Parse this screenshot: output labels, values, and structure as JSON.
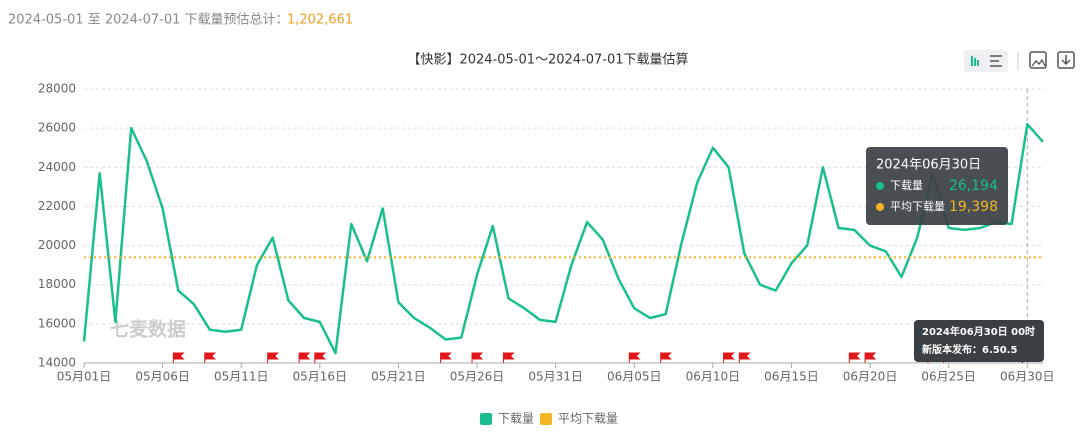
{
  "header": {
    "text": "2024-05-01 至 2024-07-01 下载量预估总计：",
    "total": "1,202,661"
  },
  "chart_data": {
    "type": "line",
    "title": "【快影】2024-05-01～2024-07-01下载量估算",
    "categories": [
      "05月01日",
      null,
      null,
      null,
      null,
      "05月06日",
      null,
      null,
      null,
      null,
      "05月11日",
      null,
      null,
      null,
      null,
      "05月16日",
      null,
      null,
      null,
      null,
      "05月21日",
      null,
      null,
      null,
      null,
      "05月26日",
      null,
      null,
      null,
      null,
      "05月31日",
      null,
      null,
      null,
      null,
      "06月05日",
      null,
      null,
      null,
      null,
      "06月10日",
      null,
      null,
      null,
      null,
      "06月15日",
      null,
      null,
      null,
      null,
      "06月20日",
      null,
      null,
      null,
      null,
      "06月25日",
      null,
      null,
      null,
      null,
      "06月30日",
      null
    ],
    "series": [
      {
        "name": "下载量",
        "color": "#1bbf8f",
        "values": [
          15100,
          23700,
          16100,
          26000,
          24300,
          21900,
          17700,
          17000,
          15700,
          15600,
          15700,
          19000,
          20400,
          17200,
          16300,
          16100,
          14500,
          21100,
          19200,
          21900,
          17100,
          16300,
          15800,
          15200,
          15300,
          18500,
          21000,
          17300,
          16800,
          16200,
          16100,
          19000,
          21200,
          20300,
          18300,
          16800,
          16300,
          16500,
          20100,
          23200,
          25000,
          24000,
          19600,
          18000,
          17700,
          19100,
          20000,
          24000,
          20900,
          20800,
          20000,
          19700,
          18400,
          20400,
          23700,
          20900,
          20800,
          20900,
          21200,
          21100,
          26194,
          25300
        ]
      }
    ],
    "average_line": {
      "name": "平均下载量",
      "color": "#f5b525",
      "value": 19398
    },
    "ylim": [
      14000,
      28000
    ],
    "yticks": [
      14000,
      16000,
      18000,
      20000,
      22000,
      24000,
      26000,
      28000
    ],
    "grid": true,
    "watermark": "七麦数据",
    "tooltip": {
      "title": "2024年06月30日",
      "rows": [
        {
          "name": "下载量",
          "value": "26,194"
        },
        {
          "name": "平均下载量",
          "value": "19,398"
        }
      ]
    },
    "release_tip": {
      "date": "2024年06月30日 00时",
      "text": "新版本发布：6.50.5"
    }
  }
}
